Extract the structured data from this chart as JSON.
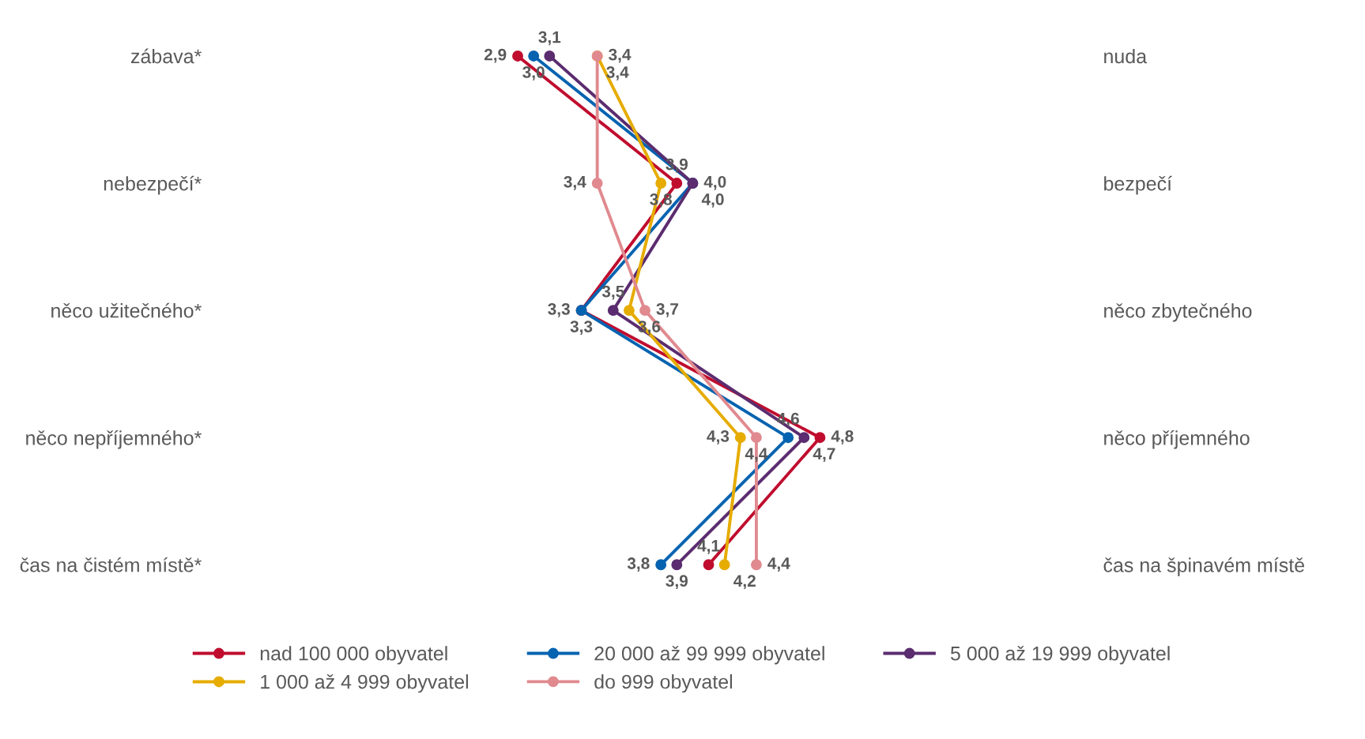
{
  "chart_data": {
    "type": "line",
    "orientation": "horizontal",
    "categories": [
      "zábava*",
      "nebezpečí*",
      "něco užitečného*",
      "něco nepříjemného*",
      "čas na čistém místě*"
    ],
    "y2_categories": [
      "nuda",
      "bezpečí",
      "něco zbytečného",
      "něco příjemného",
      "čas na špinavém místě"
    ],
    "tick_labels": "y",
    "marker": "circle",
    "line_style": "solid",
    "grid": false,
    "legend": "bottom",
    "series": [
      {
        "name": "nad 100 000 obyvatel",
        "color": "#c00d2e",
        "values": [
          2.9,
          3.9,
          3.3,
          4.8,
          4.1
        ],
        "value_labels": [
          "2,9",
          "3,9",
          "3,3",
          "4,8",
          "4,1"
        ]
      },
      {
        "name": "20 000 až 99 999 obyvatel",
        "color": "#0563b0",
        "values": [
          3.0,
          4.0,
          3.3,
          4.6,
          3.8
        ],
        "value_labels": [
          "3,0",
          "4,0",
          "3,3",
          "4,6",
          "3,8"
        ]
      },
      {
        "name": "5 000 až 19 999 obyvatel",
        "color": "#5b2c6f",
        "values": [
          3.1,
          4.0,
          3.5,
          4.7,
          3.9
        ],
        "value_labels": [
          "3,1",
          "4,0",
          "3,5",
          "4,7",
          "3,9"
        ]
      },
      {
        "name": "1 000 až 4 999 obyvatel",
        "color": "#e6ac00",
        "values": [
          3.4,
          3.8,
          3.6,
          4.3,
          4.2
        ],
        "value_labels": [
          "3,4",
          "3,8",
          "3,6",
          "4,3",
          "4,2"
        ]
      },
      {
        "name": "do 999 obyvatel",
        "color": "#e08a8f",
        "values": [
          3.4,
          3.4,
          3.7,
          4.4,
          4.4
        ],
        "value_labels": [
          "3,4",
          "3,4",
          "3,7",
          "4,4",
          "4,4"
        ]
      }
    ]
  }
}
